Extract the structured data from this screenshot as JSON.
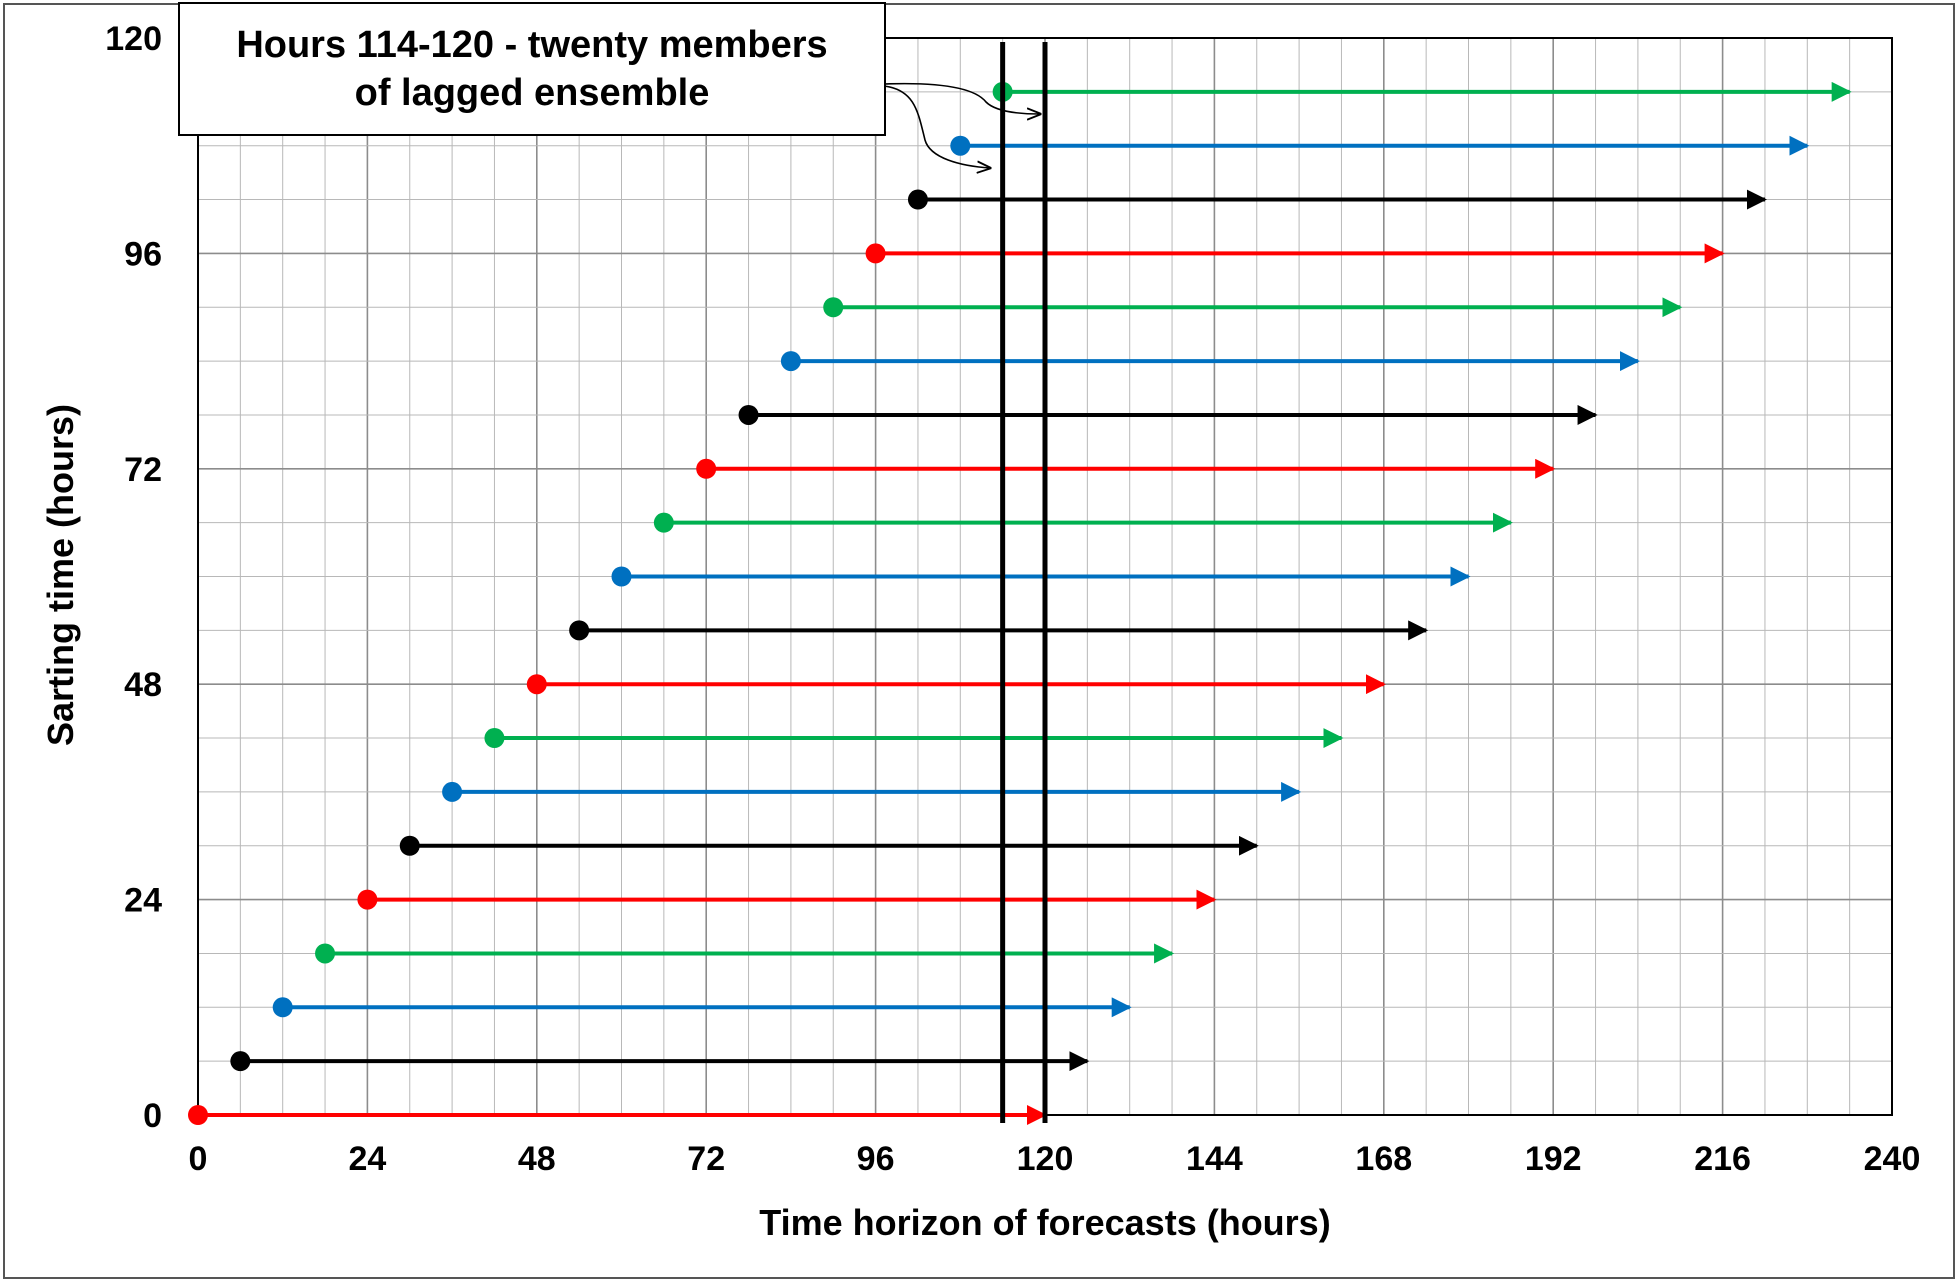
{
  "chart_data": {
    "type": "line",
    "xlabel": "Time horizon of forecasts (hours)",
    "ylabel": "Sarting time (hours)",
    "xlim": [
      0,
      240
    ],
    "ylim": [
      0,
      120
    ],
    "x_ticks": [
      "0",
      "24",
      "48",
      "72",
      "96",
      "120",
      "144",
      "168",
      "192",
      "216",
      "240"
    ],
    "y_ticks": [
      "0",
      "24",
      "48",
      "72",
      "96",
      "120"
    ],
    "grid": true,
    "annotation": "Hours 114-120 - twenty members\nof lagged ensemble",
    "vertical_markers": [
      114,
      120
    ],
    "colors": {
      "red": "#ff0000",
      "black": "#000000",
      "blue": "#0070c0",
      "green": "#00b050"
    },
    "series": [
      {
        "start": 0,
        "end": 120,
        "color": "red"
      },
      {
        "start": 6,
        "end": 126,
        "color": "black"
      },
      {
        "start": 12,
        "end": 132,
        "color": "blue"
      },
      {
        "start": 18,
        "end": 138,
        "color": "green"
      },
      {
        "start": 24,
        "end": 144,
        "color": "red"
      },
      {
        "start": 30,
        "end": 150,
        "color": "black"
      },
      {
        "start": 36,
        "end": 156,
        "color": "blue"
      },
      {
        "start": 42,
        "end": 162,
        "color": "green"
      },
      {
        "start": 48,
        "end": 168,
        "color": "red"
      },
      {
        "start": 54,
        "end": 174,
        "color": "black"
      },
      {
        "start": 60,
        "end": 180,
        "color": "blue"
      },
      {
        "start": 66,
        "end": 186,
        "color": "green"
      },
      {
        "start": 72,
        "end": 192,
        "color": "red"
      },
      {
        "start": 78,
        "end": 198,
        "color": "black"
      },
      {
        "start": 84,
        "end": 204,
        "color": "blue"
      },
      {
        "start": 90,
        "end": 210,
        "color": "green"
      },
      {
        "start": 96,
        "end": 216,
        "color": "red"
      },
      {
        "start": 102,
        "end": 222,
        "color": "black"
      },
      {
        "start": 108,
        "end": 228,
        "color": "blue"
      },
      {
        "start": 114,
        "end": 234,
        "color": "green"
      }
    ]
  }
}
